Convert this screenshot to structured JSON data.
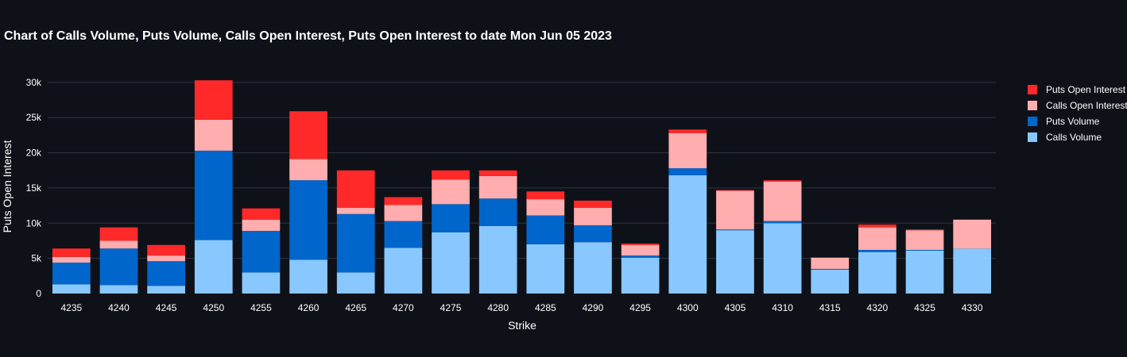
{
  "chart_data": {
    "type": "bar",
    "stacked": true,
    "title": "Chart of Calls Volume, Puts Volume, Calls Open Interest, Puts Open Interest to date Mon Jun 05 2023",
    "xlabel": "Strike",
    "ylabel": "Puts Open Interest",
    "ylim": [
      0,
      31000
    ],
    "yticks": [
      0,
      5000,
      10000,
      15000,
      20000,
      25000,
      30000
    ],
    "ytick_labels": [
      "0",
      "5k",
      "10k",
      "15k",
      "20k",
      "25k",
      "30k"
    ],
    "grid": true,
    "legend_position": "top-right",
    "categories": [
      "4235",
      "4240",
      "4245",
      "4250",
      "4255",
      "4260",
      "4265",
      "4270",
      "4275",
      "4280",
      "4285",
      "4290",
      "4295",
      "4300",
      "4305",
      "4310",
      "4315",
      "4320",
      "4325",
      "4330"
    ],
    "series": [
      {
        "name": "Calls Volume",
        "color": "#88c8ff",
        "values": [
          1300,
          1200,
          1100,
          7600,
          3000,
          4800,
          3000,
          6500,
          8700,
          9600,
          7000,
          7300,
          5100,
          16800,
          9000,
          10000,
          3400,
          5900,
          6100,
          6400
        ]
      },
      {
        "name": "Puts Volume",
        "color": "#0066cc",
        "values": [
          3100,
          5200,
          3500,
          12700,
          5900,
          11300,
          8300,
          3800,
          4000,
          3900,
          4100,
          2400,
          300,
          1000,
          100,
          300,
          100,
          300,
          100,
          0
        ]
      },
      {
        "name": "Calls Open Interest",
        "color": "#ffadae",
        "values": [
          800,
          1100,
          800,
          4400,
          1600,
          3000,
          900,
          2300,
          3500,
          3200,
          2300,
          2500,
          1500,
          5000,
          5500,
          5600,
          1600,
          3200,
          2800,
          4100
        ]
      },
      {
        "name": "Puts Open Interest",
        "color": "#ff2929",
        "values": [
          1200,
          1900,
          1500,
          5600,
          1600,
          6800,
          5300,
          1100,
          1300,
          800,
          1100,
          1000,
          200,
          500,
          100,
          200,
          0,
          400,
          100,
          0
        ]
      }
    ]
  }
}
